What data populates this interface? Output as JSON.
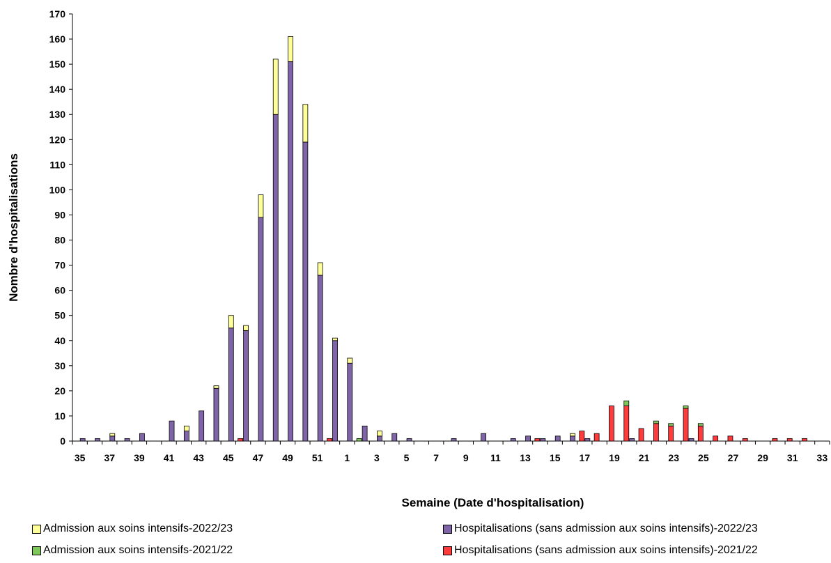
{
  "chart_data": {
    "type": "bar",
    "stacked": true,
    "xlabel": "Semaine (Date d'hospitalisation)",
    "ylabel": "Nombre d'hospitalisations",
    "ylim": [
      0,
      170
    ],
    "yticks": [
      0,
      10,
      20,
      30,
      40,
      50,
      60,
      70,
      80,
      90,
      100,
      110,
      120,
      130,
      140,
      150,
      160,
      170
    ],
    "categories": [
      "35",
      "36",
      "37",
      "38",
      "39",
      "40",
      "41",
      "42",
      "43",
      "44",
      "45",
      "46",
      "47",
      "48",
      "49",
      "50",
      "51",
      "52",
      "1",
      "2",
      "3",
      "4",
      "5",
      "6",
      "7",
      "8",
      "9",
      "10",
      "11",
      "12",
      "13",
      "14",
      "15",
      "16",
      "17",
      "18",
      "19",
      "20",
      "21",
      "22",
      "23",
      "24",
      "25",
      "26",
      "27",
      "28",
      "29",
      "30",
      "31",
      "32",
      "33"
    ],
    "tick_labels": [
      "35",
      "37",
      "39",
      "41",
      "43",
      "45",
      "47",
      "49",
      "51",
      "1",
      "3",
      "5",
      "7",
      "9",
      "11",
      "13",
      "15",
      "17",
      "19",
      "21",
      "23",
      "25",
      "27",
      "29",
      "31",
      "33"
    ],
    "series": [
      {
        "name": "Hospitalisations (sans admission aux soins intensifs)-2022/23",
        "color": "#7f65a8",
        "season": "2022/23",
        "values": [
          1,
          1,
          2,
          1,
          3,
          0,
          8,
          4,
          12,
          21,
          45,
          44,
          89,
          130,
          151,
          119,
          66,
          40,
          31,
          6,
          2,
          3,
          1,
          0,
          0,
          1,
          0,
          3,
          0,
          1,
          2,
          1,
          2,
          2,
          1,
          0,
          0,
          1,
          0,
          0,
          0,
          1,
          0,
          0,
          0,
          0,
          0,
          0,
          0,
          0,
          0
        ]
      },
      {
        "name": "Admission aux soins intensifs-2022/23",
        "color": "#ffff99",
        "season": "2022/23",
        "values": [
          0,
          0,
          1,
          0,
          0,
          0,
          0,
          2,
          0,
          1,
          5,
          2,
          9,
          22,
          10,
          15,
          5,
          1,
          2,
          0,
          2,
          0,
          0,
          0,
          0,
          0,
          0,
          0,
          0,
          0,
          0,
          0,
          0,
          1,
          0,
          0,
          0,
          0,
          0,
          0,
          0,
          0,
          0,
          0,
          0,
          0,
          0,
          0,
          0,
          0,
          0
        ]
      },
      {
        "name": "Hospitalisations (sans admission aux soins intensifs)-2021/22",
        "color": "#ff3b3b",
        "season": "2021/22",
        "values": [
          0,
          0,
          0,
          0,
          0,
          0,
          0,
          0,
          0,
          0,
          0,
          1,
          0,
          0,
          0,
          0,
          0,
          1,
          0,
          0,
          0,
          0,
          0,
          0,
          0,
          0,
          0,
          0,
          0,
          0,
          0,
          1,
          0,
          0,
          4,
          3,
          14,
          14,
          5,
          7,
          6,
          13,
          6,
          2,
          2,
          1,
          0,
          1,
          1,
          1,
          0
        ]
      },
      {
        "name": "Admission aux soins intensifs-2021/22",
        "color": "#7ec85a",
        "season": "2021/22",
        "values": [
          0,
          0,
          0,
          0,
          0,
          0,
          0,
          0,
          0,
          0,
          0,
          0,
          0,
          0,
          0,
          0,
          0,
          0,
          0,
          1,
          0,
          0,
          0,
          0,
          0,
          0,
          0,
          0,
          0,
          0,
          0,
          0,
          0,
          0,
          0,
          0,
          0,
          2,
          0,
          1,
          1,
          1,
          1,
          0,
          0,
          0,
          0,
          0,
          0,
          0,
          0
        ]
      }
    ],
    "legend": [
      "Admission aux soins intensifs-2022/23",
      "Hospitalisations (sans admission aux soins intensifs)-2022/23",
      "Admission aux soins intensifs-2021/22",
      "Hospitalisations (sans admission aux soins intensifs)-2021/22"
    ],
    "legend_colors": [
      "#ffff99",
      "#7f65a8",
      "#7ec85a",
      "#ff3b3b"
    ],
    "legend_placement": "bottom",
    "grid": false
  }
}
